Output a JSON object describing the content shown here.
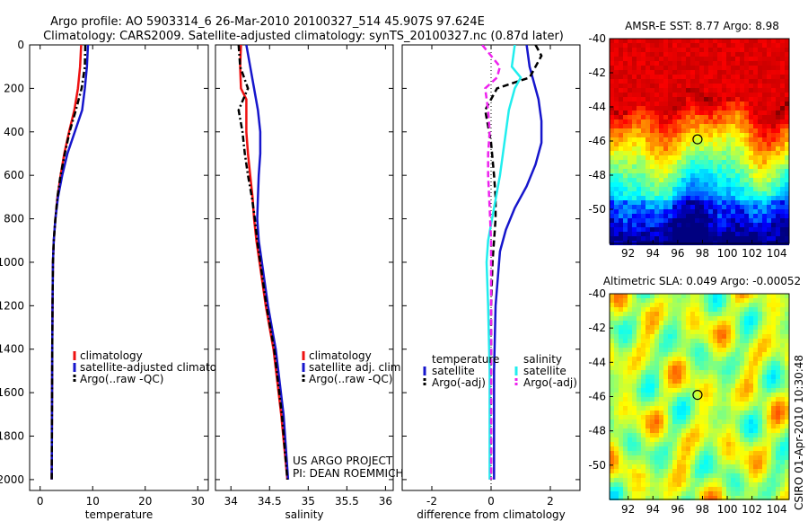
{
  "header": {
    "line1": "Argo profile: AO 5903314_6 26-Mar-2010 20100327_514 45.907S 97.624E",
    "line2": "Climatology: CARS2009. Satellite-adjusted climatology: synTS_20100327.nc (0.87d later)"
  },
  "footer": {
    "project": "US ARGO PROJECT",
    "pi": "PI: DEAN ROEMMICH",
    "stamp": "CSIRO 01-Apr-2010 10:30:48"
  },
  "colors": {
    "climatology": "#ee1111",
    "satellite": "#1616cc",
    "argo": "#000000",
    "satellite_diff_salinity": "#22eeee",
    "argo_diff_salinity": "#ee22ee"
  },
  "chart_data": [
    {
      "type": "line",
      "xlabel": "temperature",
      "ylabel": "",
      "xlim": [
        -2,
        32
      ],
      "ylim": [
        2050,
        0
      ],
      "xticks": [
        0,
        10,
        20,
        30
      ],
      "yticks": [
        0,
        200,
        400,
        600,
        800,
        1000,
        1200,
        1400,
        1600,
        1800,
        2000
      ],
      "legend": [
        "climatology",
        "satellite-adjusted climatolo",
        "Argo(..raw -QC)"
      ],
      "legend_position": "lower-right",
      "series": [
        {
          "name": "climatology",
          "style": "solid",
          "color_key": "climatology",
          "x": [
            7.8,
            7.6,
            7.2,
            6.5,
            5.5,
            4.6,
            3.9,
            3.3,
            2.9,
            2.6,
            2.45,
            2.35,
            2.3,
            2.25,
            2.2
          ],
          "y": [
            0,
            100,
            200,
            300,
            400,
            500,
            600,
            700,
            800,
            900,
            1000,
            1200,
            1400,
            1700,
            2000
          ]
        },
        {
          "name": "satellite-adjusted climatolo",
          "style": "solid",
          "color_key": "satellite",
          "x": [
            9.1,
            8.9,
            8.5,
            8.0,
            6.6,
            5.2,
            4.2,
            3.4,
            2.9,
            2.6,
            2.45,
            2.35,
            2.3,
            2.25,
            2.2
          ],
          "y": [
            0,
            100,
            200,
            300,
            400,
            500,
            600,
            700,
            800,
            900,
            1000,
            1200,
            1400,
            1700,
            2000
          ]
        },
        {
          "name": "Argo(..raw -QC)",
          "style": "dashdot",
          "color_key": "argo",
          "x": [
            8.6,
            8.5,
            7.9,
            6.8,
            5.6,
            4.7,
            3.9,
            3.3,
            2.9,
            2.6,
            2.45,
            2.35,
            2.3,
            2.25,
            2.2
          ],
          "y": [
            0,
            100,
            200,
            300,
            400,
            500,
            600,
            700,
            800,
            900,
            1000,
            1200,
            1400,
            1700,
            2000
          ]
        }
      ]
    },
    {
      "type": "line",
      "xlabel": "salinity",
      "ylabel": "",
      "xlim": [
        33.8,
        36.1
      ],
      "ylim": [
        2050,
        0
      ],
      "xticks": [
        34,
        34.5,
        35,
        35.5,
        36
      ],
      "legend": [
        "climatology",
        "satellite adj. clim.",
        "Argo(..raw -QC)"
      ],
      "legend_position": "lower-right",
      "series": [
        {
          "name": "climatology",
          "style": "solid",
          "color_key": "climatology",
          "x": [
            34.13,
            34.12,
            34.13,
            34.2,
            34.2,
            34.22,
            34.25,
            34.28,
            34.3,
            34.33,
            34.37,
            34.45,
            34.55,
            34.65,
            34.73
          ],
          "y": [
            0,
            100,
            200,
            250,
            400,
            500,
            600,
            700,
            800,
            900,
            1000,
            1200,
            1400,
            1700,
            2000
          ]
        },
        {
          "name": "satellite adj. clim.",
          "style": "solid",
          "color_key": "satellite",
          "x": [
            34.2,
            34.25,
            34.3,
            34.35,
            34.38,
            34.38,
            34.36,
            34.35,
            34.34,
            34.36,
            34.4,
            34.48,
            34.58,
            34.68,
            34.74
          ],
          "y": [
            0,
            100,
            200,
            300,
            400,
            500,
            600,
            700,
            800,
            900,
            1000,
            1200,
            1400,
            1700,
            2000
          ]
        },
        {
          "name": "Argo(..raw -QC)",
          "style": "dashdot",
          "color_key": "argo",
          "x": [
            34.1,
            34.12,
            34.22,
            34.1,
            34.15,
            34.18,
            34.22,
            34.27,
            34.31,
            34.34,
            34.38,
            34.46,
            34.56,
            34.66,
            34.73
          ],
          "y": [
            0,
            100,
            200,
            300,
            400,
            500,
            600,
            700,
            800,
            900,
            1000,
            1200,
            1400,
            1700,
            2000
          ]
        }
      ]
    },
    {
      "type": "line",
      "xlabel": "difference from climatology",
      "ylabel": "",
      "xlim": [
        -3,
        3
      ],
      "ylim": [
        2050,
        0
      ],
      "xticks": [
        -2,
        0,
        2
      ],
      "legend_groups": [
        {
          "title": "temperature",
          "entries": [
            "satellite",
            "Argo(-adj)"
          ]
        },
        {
          "title": "salinity",
          "entries": [
            "satellite",
            "Argo(-adj)"
          ]
        }
      ],
      "legend_position": "lower",
      "series": [
        {
          "name": "satellite",
          "group": "temperature",
          "style": "solid",
          "color_key": "satellite",
          "x": [
            1.2,
            1.3,
            1.4,
            1.6,
            1.7,
            1.7,
            1.5,
            1.2,
            0.8,
            0.5,
            0.3,
            0.15,
            0.1,
            0.1,
            0.1
          ],
          "y": [
            0,
            100,
            150,
            250,
            350,
            450,
            550,
            650,
            750,
            850,
            950,
            1200,
            1500,
            1800,
            2000
          ]
        },
        {
          "name": "Argo(-adj)",
          "group": "temperature",
          "style": "dashed",
          "color_key": "argo",
          "x": [
            1.5,
            1.7,
            1.3,
            0.2,
            -0.2,
            0.0,
            0.1,
            0.15,
            0.15,
            0.1,
            0.05,
            0.0,
            0.0,
            0.0,
            0.0
          ],
          "y": [
            0,
            50,
            150,
            200,
            300,
            450,
            600,
            700,
            800,
            900,
            1000,
            1200,
            1500,
            1800,
            2000
          ]
        },
        {
          "name": "satellite",
          "group": "salinity",
          "style": "solid",
          "color_key": "satellite_diff_salinity",
          "x": [
            0.8,
            0.7,
            1.0,
            0.8,
            0.6,
            0.5,
            0.4,
            0.3,
            0.1,
            -0.1,
            -0.15,
            -0.1,
            -0.05,
            -0.05,
            -0.05
          ],
          "y": [
            0,
            100,
            150,
            200,
            300,
            400,
            500,
            600,
            750,
            900,
            1000,
            1200,
            1500,
            1800,
            2000
          ]
        },
        {
          "name": "Argo(-adj)",
          "group": "salinity",
          "style": "dashed",
          "color_key": "argo_diff_salinity",
          "x": [
            -0.3,
            0.3,
            0.2,
            -0.2,
            -0.1,
            -0.05,
            -0.1,
            -0.1,
            -0.05,
            0.0,
            0.0,
            0.0,
            0.0,
            0.0,
            0.0
          ],
          "y": [
            0,
            100,
            150,
            200,
            300,
            400,
            500,
            600,
            750,
            900,
            1000,
            1200,
            1500,
            1800,
            2000
          ]
        }
      ]
    },
    {
      "type": "heatmap",
      "title": "AMSR-E SST: 8.77 Argo: 8.98",
      "xlim": [
        90.5,
        105
      ],
      "ylim": [
        -52,
        -40
      ],
      "xticks": [
        92,
        94,
        96,
        98,
        100,
        102,
        104
      ],
      "yticks": [
        -40,
        -42,
        -44,
        -46,
        -48,
        -50
      ],
      "marker": {
        "x": 97.6,
        "y": -45.9
      },
      "colormap": "jet"
    },
    {
      "type": "heatmap",
      "title": "Altimetric SLA: 0.049 Argo: -0.00052",
      "xlim": [
        90.5,
        105
      ],
      "ylim": [
        -52,
        -40
      ],
      "xticks": [
        92,
        94,
        96,
        98,
        100,
        102,
        104
      ],
      "yticks": [
        -40,
        -42,
        -44,
        -46,
        -48,
        -50
      ],
      "marker": {
        "x": 97.6,
        "y": -45.9
      },
      "colormap": "jet"
    }
  ]
}
